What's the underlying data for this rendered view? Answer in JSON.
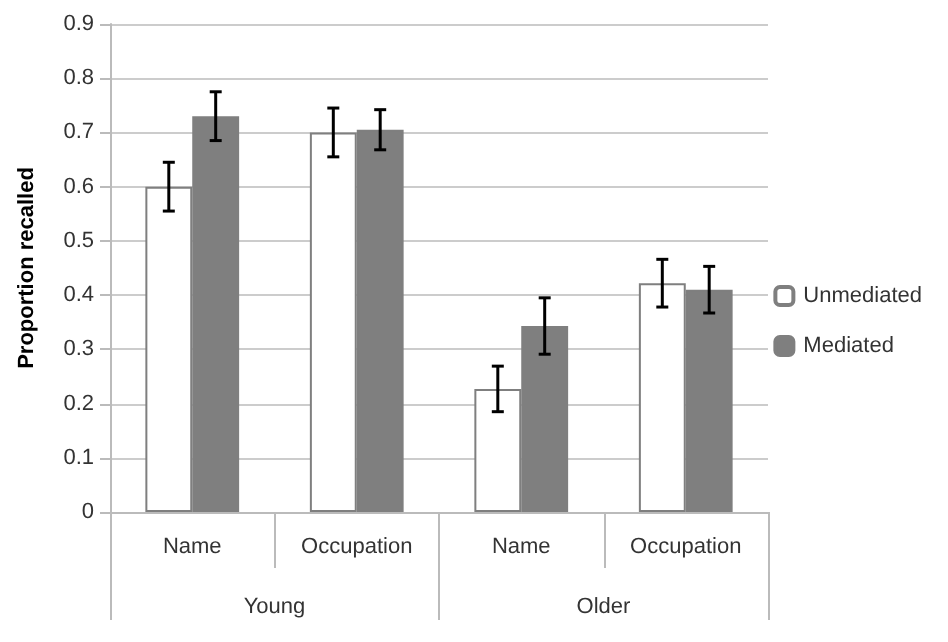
{
  "chart_data": {
    "type": "bar",
    "ylabel": "Proportion recalled",
    "categories": [
      "Name",
      "Occupation",
      "Name",
      "Occupation"
    ],
    "annotations": [
      "Young",
      "Older"
    ],
    "series": [
      {
        "name": "Unmediated",
        "color": "#ffffff",
        "values": [
          0.6,
          0.7,
          0.227,
          0.422
        ],
        "errors": [
          0.045,
          0.045,
          0.042,
          0.044
        ]
      },
      {
        "name": "Mediated",
        "color": "#7f7f7f",
        "values": [
          0.73,
          0.705,
          0.343,
          0.41
        ],
        "errors": [
          0.045,
          0.037,
          0.052,
          0.043
        ]
      }
    ],
    "ylim": [
      0,
      0.9
    ],
    "yticks": [
      0,
      0.1,
      0.2,
      0.3,
      0.4,
      0.5,
      0.6,
      0.7,
      0.8,
      0.9
    ],
    "grid": "y",
    "legend": "right"
  }
}
